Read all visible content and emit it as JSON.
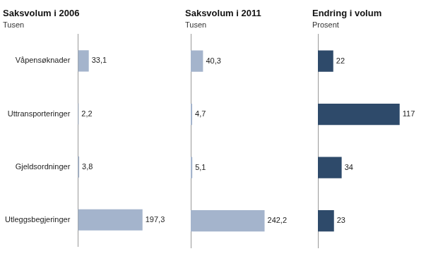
{
  "chart_data": [
    {
      "type": "bar",
      "orientation": "horizontal",
      "title": "Saksvolum i 2006",
      "subtitle": "Tusen",
      "categories": [
        "Våpensøknader",
        "Uttransporteringer",
        "Gjeldsordninger",
        "Utleggsbegjeringer"
      ],
      "values": [
        33.1,
        2.2,
        3.8,
        197.3
      ],
      "value_labels": [
        "33,1",
        "2,2",
        "3,8",
        "197,3"
      ],
      "data_labels": true,
      "color": "#a4b4cc",
      "xlim": [
        0,
        305.815
      ],
      "grid": false,
      "tick_labels": "y"
    },
    {
      "type": "bar",
      "orientation": "horizontal",
      "title": "Saksvolum i 2011",
      "subtitle": "Tusen",
      "categories": [
        null,
        null,
        null,
        null
      ],
      "values": [
        40.3,
        4.7,
        5.1,
        242.2
      ],
      "value_labels": [
        "40,3",
        "4,7",
        "5,1",
        "242,2"
      ],
      "data_labels": true,
      "color": "#a4b4cc",
      "xlim": [
        0,
        375.41
      ],
      "grid": false,
      "tick_labels": false
    },
    {
      "type": "bar",
      "orientation": "horizontal",
      "title": "Endring i volum",
      "subtitle": "Prosent",
      "categories": [
        null,
        null,
        null,
        null
      ],
      "values": [
        22,
        117,
        34,
        23
      ],
      "data_labels": true,
      "color": "#2e4a6a",
      "xlim": [
        0,
        163.8
      ],
      "grid": false,
      "tick_labels": false
    }
  ]
}
